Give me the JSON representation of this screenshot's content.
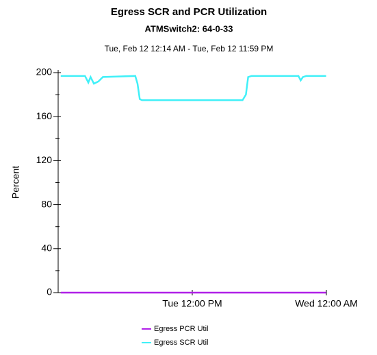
{
  "chart_data": {
    "type": "line",
    "title": "Egress SCR and PCR Utilization",
    "subtitle": "ATMSwitch2: 64-0-33",
    "date_range": "Tue, Feb 12 12:14 AM - Tue, Feb 12 11:59 PM",
    "y_label": "Percent",
    "xlim": [
      0,
      24
    ],
    "xticks": [
      {
        "value": 12,
        "label": "Tue 12:00 PM"
      },
      {
        "value": 24,
        "label": "Wed 12:00 AM"
      }
    ],
    "ylim": [
      0,
      200
    ],
    "yticks": [
      0,
      40,
      80,
      120,
      160,
      200
    ],
    "yticks_minor": [
      20,
      60,
      100,
      140,
      180
    ],
    "series": [
      {
        "name": "Egress PCR Util",
        "color": "#b020e8",
        "x": [
          0.23,
          23.98
        ],
        "values": [
          0,
          0
        ]
      },
      {
        "name": "Egress SCR Util",
        "color": "#40f0f8",
        "x": [
          0.23,
          2.4,
          2.7,
          2.9,
          3.2,
          3.6,
          4.0,
          6.9,
          7.1,
          7.3,
          7.5,
          16.5,
          16.8,
          17.0,
          17.3,
          21.5,
          21.7,
          21.9,
          22.2,
          23.98
        ],
        "values": [
          197,
          197,
          191,
          196,
          190,
          192,
          196,
          197,
          190,
          176,
          175,
          175,
          180,
          196,
          197,
          197,
          193,
          196,
          197,
          197
        ]
      }
    ]
  }
}
